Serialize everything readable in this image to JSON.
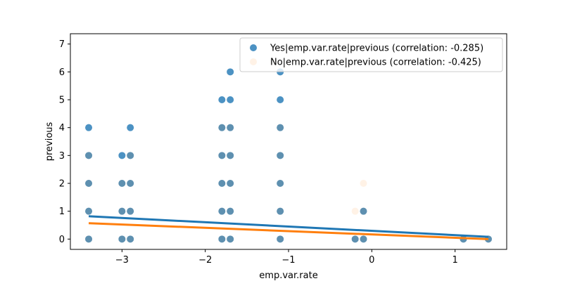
{
  "chart_data": {
    "type": "scatter",
    "xlabel": "emp.var.rate",
    "ylabel": "previous",
    "xlim": [
      -3.62,
      1.62
    ],
    "ylim": [
      -0.37,
      7.37
    ],
    "xticks": [
      -3,
      -2,
      -1,
      0,
      1
    ],
    "xtick_labels": [
      "−3",
      "−2",
      "−1",
      "0",
      "1"
    ],
    "yticks": [
      0,
      1,
      2,
      3,
      4,
      5,
      6,
      7
    ],
    "ytick_labels": [
      "0",
      "1",
      "2",
      "3",
      "4",
      "5",
      "6",
      "7"
    ],
    "legend_position": "top-right",
    "grid": false,
    "series": [
      {
        "name": "Yes|emp.var.rate|previous (correlation: -0.285)",
        "color": "#1f77b4",
        "marker_opacity": 0.8,
        "points": [
          [
            -3.4,
            0
          ],
          [
            -3.4,
            1
          ],
          [
            -3.4,
            2
          ],
          [
            -3.4,
            3
          ],
          [
            -3.4,
            4
          ],
          [
            -3.0,
            0
          ],
          [
            -3.0,
            1
          ],
          [
            -3.0,
            2
          ],
          [
            -3.0,
            3
          ],
          [
            -2.9,
            0
          ],
          [
            -2.9,
            1
          ],
          [
            -2.9,
            2
          ],
          [
            -2.9,
            3
          ],
          [
            -2.9,
            4
          ],
          [
            -1.8,
            0
          ],
          [
            -1.8,
            1
          ],
          [
            -1.8,
            2
          ],
          [
            -1.8,
            3
          ],
          [
            -1.8,
            4
          ],
          [
            -1.8,
            5
          ],
          [
            -1.7,
            0
          ],
          [
            -1.7,
            1
          ],
          [
            -1.7,
            2
          ],
          [
            -1.7,
            3
          ],
          [
            -1.7,
            4
          ],
          [
            -1.7,
            5
          ],
          [
            -1.7,
            6
          ],
          [
            -1.1,
            0
          ],
          [
            -1.1,
            1
          ],
          [
            -1.1,
            2
          ],
          [
            -1.1,
            3
          ],
          [
            -1.1,
            4
          ],
          [
            -1.1,
            5
          ],
          [
            -1.1,
            6
          ],
          [
            -0.2,
            0
          ],
          [
            -0.1,
            0
          ],
          [
            -0.1,
            1
          ],
          [
            1.1,
            0
          ],
          [
            1.4,
            0
          ]
        ],
        "trend": {
          "x": [
            -3.4,
            1.4
          ],
          "y": [
            0.82,
            0.08
          ]
        }
      },
      {
        "name": "No|emp.var.rate|previous (correlation: -0.425)",
        "color": "#ff7f0e",
        "marker_opacity": 0.1,
        "points": [
          [
            -3.4,
            0
          ],
          [
            -3.4,
            1
          ],
          [
            -3.4,
            2
          ],
          [
            -3.4,
            3
          ],
          [
            -3.0,
            0
          ],
          [
            -3.0,
            1
          ],
          [
            -3.0,
            2
          ],
          [
            -2.9,
            0
          ],
          [
            -2.9,
            1
          ],
          [
            -2.9,
            2
          ],
          [
            -2.9,
            3
          ],
          [
            -1.8,
            0
          ],
          [
            -1.8,
            1
          ],
          [
            -1.8,
            2
          ],
          [
            -1.8,
            3
          ],
          [
            -1.8,
            4
          ],
          [
            -1.7,
            0
          ],
          [
            -1.7,
            1
          ],
          [
            -1.7,
            2
          ],
          [
            -1.7,
            3
          ],
          [
            -1.7,
            4
          ],
          [
            -1.1,
            0
          ],
          [
            -1.1,
            1
          ],
          [
            -1.1,
            2
          ],
          [
            -1.1,
            3
          ],
          [
            -1.1,
            4
          ],
          [
            -0.2,
            0
          ],
          [
            -0.2,
            1
          ],
          [
            -0.1,
            0
          ],
          [
            -0.1,
            1
          ],
          [
            -0.1,
            2
          ],
          [
            1.1,
            0
          ],
          [
            1.4,
            0
          ]
        ],
        "trend": {
          "x": [
            -3.4,
            1.4
          ],
          "y": [
            0.57,
            0.0
          ]
        }
      }
    ]
  }
}
